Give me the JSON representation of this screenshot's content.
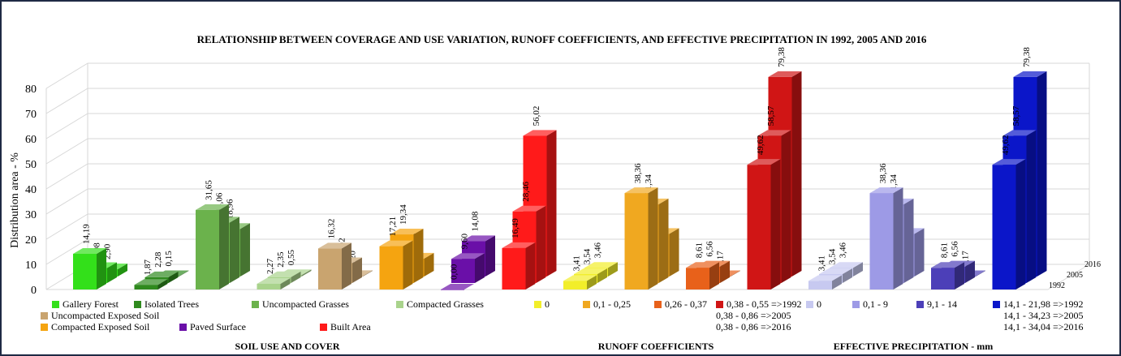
{
  "chart_data": {
    "type": "bar",
    "title": "RELATIONSHIP BETWEEN COVERAGE AND USE VARIATION, RUNOFF COEFFICIENTS, AND EFFECTIVE PRECIPITATION IN 1992, 2005 AND 2016",
    "ylabel": "Distribution area - %",
    "ylim": [
      0,
      80
    ],
    "yticks": [
      "0",
      "10",
      "20",
      "30",
      "40",
      "50",
      "60",
      "70",
      "80"
    ],
    "depth_labels": [
      "1992",
      "2005",
      "2016"
    ],
    "grid": true,
    "groups": [
      {
        "name": "SOIL USE AND COVER",
        "categories": [
          {
            "name": "Gallery Forest",
            "color": "#33e01a",
            "values": [
              14.19,
              5.98,
              2.9
            ],
            "labels": [
              "14,19",
              "5,98",
              "2,90"
            ]
          },
          {
            "name": "Isolated Trees",
            "color": "#2f8a1e",
            "values": [
              1.87,
              2.28,
              0.15
            ],
            "labels": [
              "1,87",
              "2,28",
              "0,15"
            ]
          },
          {
            "name": "Uncompacted Grasses",
            "color": "#6bb24c",
            "values": [
              31.65,
              24.06,
              18.96
            ],
            "labels": [
              "31,65",
              "24,06",
              "18,96"
            ]
          },
          {
            "name": "Compacted Grasses",
            "color": "#a9d38c",
            "values": [
              2.27,
              2.35,
              0.55
            ],
            "labels": [
              "2,27",
              "2,35",
              "0,55"
            ]
          },
          {
            "name": "Uncompacted Exposed Soil",
            "color": "#c9a46f",
            "values": [
              16.32,
              7.92,
              0.2
            ],
            "labels": [
              "16,32",
              "7,92",
              "0,20"
            ]
          },
          {
            "name": "Compacted Exposed Soil",
            "color": "#f5a410",
            "values": [
              17.21,
              19.34,
              7.15
            ],
            "labels": [
              "17,21",
              "19,34",
              "7,15"
            ]
          },
          {
            "name": "Paved Surface",
            "color": "#6a0fa8",
            "values": [
              0.0,
              9.6,
              14.08
            ],
            "labels": [
              "0,00",
              "9,60",
              "14,08"
            ]
          },
          {
            "name": "Built Area",
            "color": "#ff1a1a",
            "values": [
              16.49,
              28.46,
              56.02
            ],
            "labels": [
              "16,49",
              "28,46",
              "56,02"
            ]
          }
        ]
      },
      {
        "name": "RUNOFF COEFFICIENTS",
        "categories": [
          {
            "name": "0",
            "color": "#f2ee2a",
            "values": [
              3.41,
              3.54,
              3.46
            ],
            "labels": [
              "3,41",
              "3,54",
              "3,46"
            ]
          },
          {
            "name": "0,1 - 0,25",
            "color": "#f0a820",
            "values": [
              38.36,
              31.34,
              16.99
            ],
            "labels": [
              "38,36",
              "31,34",
              "16,99"
            ]
          },
          {
            "name": "0,26 - 0,37",
            "color": "#e8611a",
            "values": [
              8.61,
              6.56,
              0.17
            ],
            "labels": [
              "8,61",
              "6,56",
              "0,17"
            ]
          },
          {
            "name": "0,38 - 0,55 =>1992",
            "color": "#d01515",
            "values": [
              49.62,
              58.57,
              79.38
            ],
            "labels": [
              "49,62",
              "58,57",
              "79,38"
            ]
          }
        ],
        "notes": [
          "0,38 - 0,86 =>2005",
          "0,38 - 0,86 =>2016"
        ]
      },
      {
        "name": "EFFECTIVE PRECIPITATION - mm",
        "categories": [
          {
            "name": "0",
            "color": "#c7c9f0",
            "values": [
              3.41,
              3.54,
              3.46
            ],
            "labels": [
              "3,41",
              "3,54",
              "3,46"
            ]
          },
          {
            "name": "0,1 - 9",
            "color": "#9d9ae6",
            "values": [
              38.36,
              31.34,
              16.99
            ],
            "labels": [
              "38,36",
              "31,34",
              "16,99"
            ]
          },
          {
            "name": "9,1 - 14",
            "color": "#4c3fb8",
            "values": [
              8.61,
              6.56,
              0.17
            ],
            "labels": [
              "8,61",
              "6,56",
              "0,17"
            ]
          },
          {
            "name": "14,1 - 21,98 =>1992",
            "color": "#0b16c9",
            "values": [
              49.62,
              58.57,
              79.38
            ],
            "labels": [
              "49,62",
              "58,57",
              "79,38"
            ]
          }
        ],
        "notes": [
          "14,1 - 34,23 =>2005",
          "14,1 - 34,04 =>2016"
        ]
      }
    ]
  }
}
